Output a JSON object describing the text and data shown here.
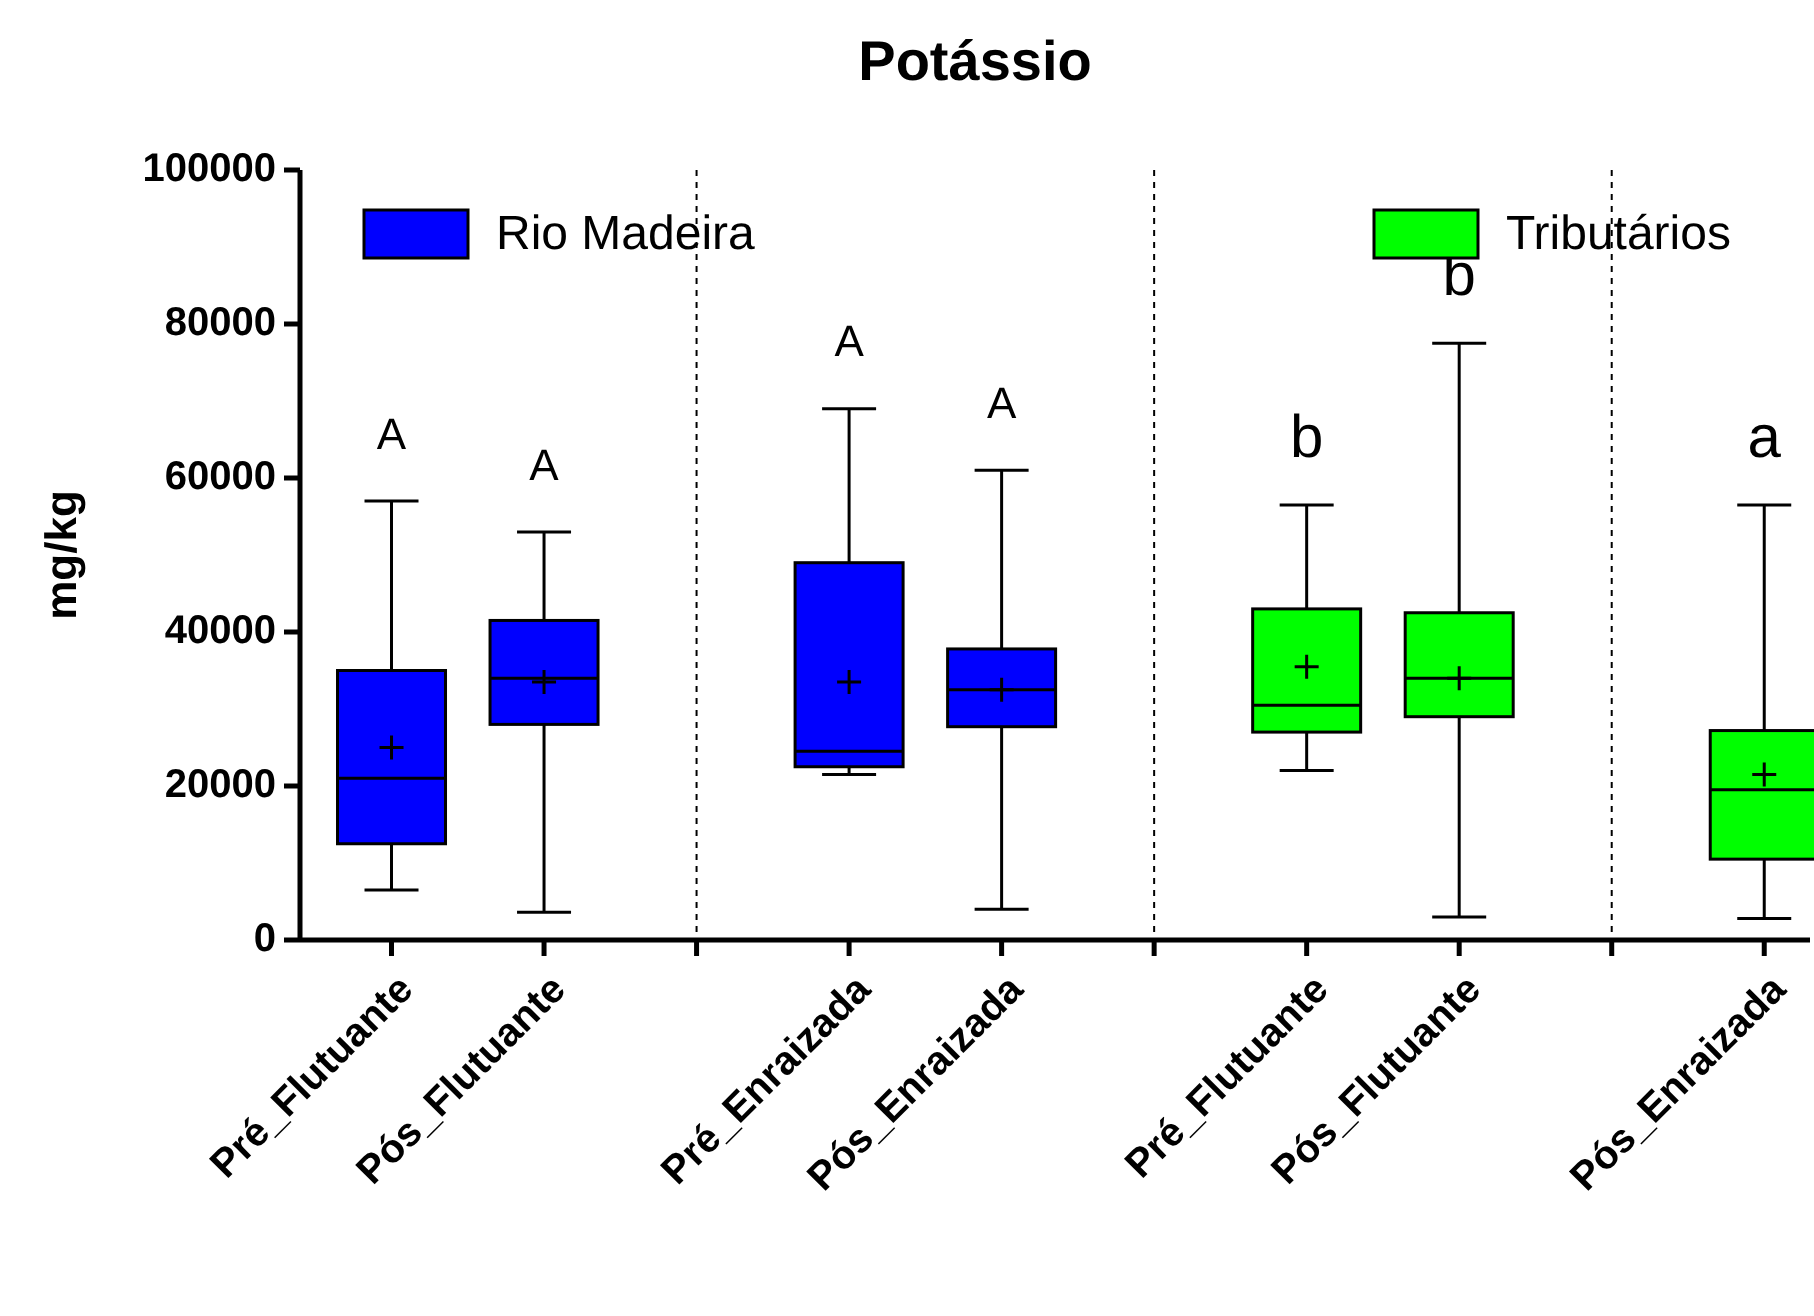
{
  "chart_data": {
    "type": "box",
    "title": "Potássio",
    "ylabel": "mg/kg",
    "ylim": [
      0,
      100000
    ],
    "yticks": [
      0,
      20000,
      40000,
      60000,
      80000,
      100000
    ],
    "categories": [
      "Pré_Flutuante",
      "Pós_Flutuante",
      null,
      "Pré_Enraizada",
      "Pós_Enraizada",
      null,
      "Pré_Flutuante",
      "Pós_Flutuante",
      null,
      "Pós_Enraizada"
    ],
    "series": [
      {
        "name": "Rio Madeira",
        "color": "#0000ff",
        "boxes": [
          {
            "low": 6500,
            "q1": 12500,
            "median": 21000,
            "q3": 35000,
            "high": 57000,
            "mean": 25000
          },
          {
            "low": 3600,
            "q1": 28000,
            "median": 34000,
            "q3": 41500,
            "high": 53000,
            "mean": 33500
          },
          null,
          {
            "low": 21500,
            "q1": 22500,
            "median": 24500,
            "q3": 49000,
            "high": 69000,
            "mean": 33500
          },
          {
            "low": 4000,
            "q1": 27700,
            "median": 32500,
            "q3": 37800,
            "high": 61000,
            "mean": 32500
          },
          null,
          null,
          null,
          null,
          null
        ]
      },
      {
        "name": "Tributários",
        "color": "#00ff00",
        "boxes": [
          null,
          null,
          null,
          null,
          null,
          null,
          {
            "low": 22000,
            "q1": 27000,
            "median": 30500,
            "q3": 43000,
            "high": 56500,
            "mean": 35500
          },
          {
            "low": 3000,
            "q1": 29000,
            "median": 34000,
            "q3": 42500,
            "high": 77500,
            "mean": 34000
          },
          null,
          {
            "low": 2800,
            "q1": 10500,
            "median": 19500,
            "q3": 27200,
            "high": 56500,
            "mean": 21500
          }
        ]
      }
    ],
    "annotations": [
      "A",
      "A",
      "A",
      "A",
      "b",
      "b",
      "a"
    ],
    "legend": "top",
    "grid": "x"
  }
}
